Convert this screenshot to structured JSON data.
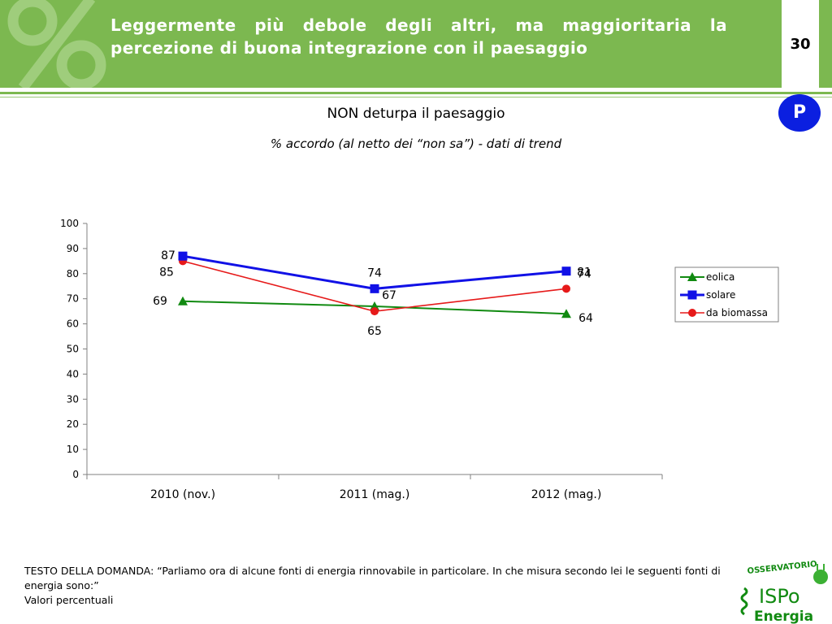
{
  "header": {
    "title": "Leggermente più debole degli altri, ma maggioritaria la percezione di buona integrazione con il paesaggio",
    "page_number": "30",
    "badge": "P"
  },
  "chart_title": "NON deturpa il paesaggio",
  "chart_subtitle": "% accordo  (al netto dei “non sa”) - dati di trend",
  "chart_data": {
    "type": "line",
    "categories": [
      "2010 (nov.)",
      "2011 (mag.)",
      "2012 (mag.)"
    ],
    "series": [
      {
        "name": "eolica",
        "values": [
          69,
          67,
          64
        ],
        "color": "#118a11",
        "marker": "triangle"
      },
      {
        "name": "solare",
        "values": [
          87,
          74,
          81
        ],
        "color": "#1111e6",
        "marker": "square"
      },
      {
        "name": "da biomassa",
        "values": [
          85,
          65,
          74
        ],
        "color": "#e61919",
        "marker": "circle"
      }
    ],
    "ylim": [
      0,
      100
    ],
    "yticks": [
      0,
      10,
      20,
      30,
      40,
      50,
      60,
      70,
      80,
      90,
      100
    ],
    "grid": false,
    "legend_position": "right"
  },
  "footer": {
    "question": "TESTO DELLA DOMANDA: “Parliamo ora di alcune fonti di energia rinnovabile in particolare. In che misura secondo lei le seguenti fonti di energia sono:”",
    "note": "Valori percentuali"
  },
  "logo": {
    "line1": "OSSERVATORIO",
    "line2": "ISPo",
    "line3": "Energia",
    "color": "#118a11"
  }
}
